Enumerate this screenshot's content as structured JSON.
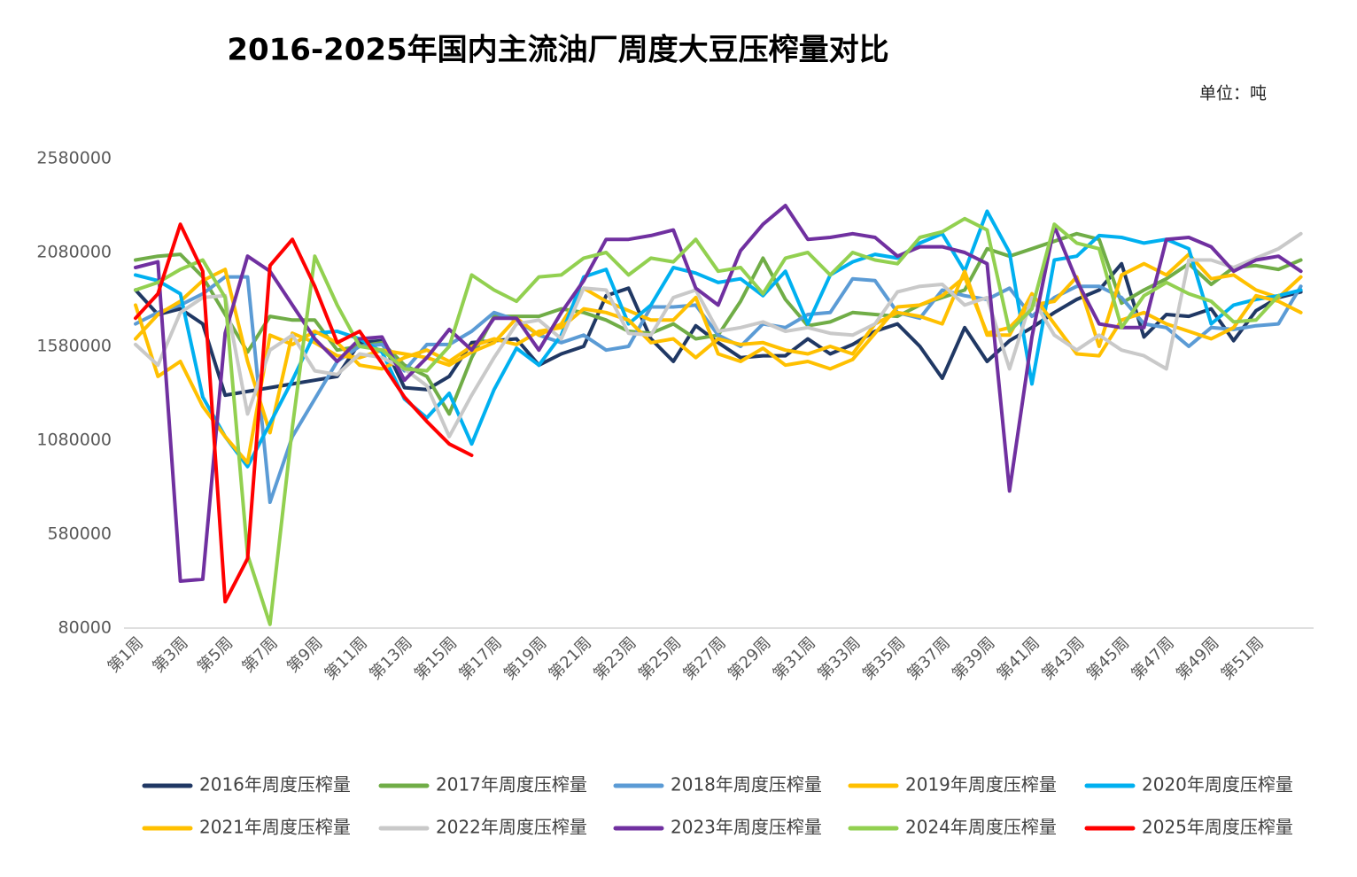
{
  "chart_data": {
    "type": "line",
    "title": "2016-2025年国内主流油厂周度大豆压榨量对比",
    "unit": "单位：吨",
    "categories": [
      "第1周",
      null,
      "第3周",
      null,
      "第5周",
      null,
      "第7周",
      null,
      "第9周",
      null,
      "第11周",
      null,
      "第13周",
      null,
      "第15周",
      null,
      "第17周",
      null,
      "第19周",
      null,
      "第21周",
      null,
      "第23周",
      null,
      "第25周",
      null,
      "第27周",
      null,
      "第29周",
      null,
      "第31周",
      null,
      "第33周",
      null,
      "第35周",
      null,
      "第37周",
      null,
      "第39周",
      null,
      "第41周",
      null,
      "第43周",
      null,
      "第45周",
      null,
      "第47周",
      null,
      "第49周",
      null,
      "第51周",
      null,
      null
    ],
    "ylim": [
      80000,
      2580000
    ],
    "yticks": [
      80000,
      580000,
      1080000,
      1580000,
      2080000,
      2580000
    ],
    "grid": false,
    "legend": "bottom",
    "series": [
      {
        "name": "2016年周度压榨量",
        "color": "#203864",
        "values": [
          1880000,
          1750000,
          1780000,
          1700000,
          1320000,
          1340000,
          1360000,
          1380000,
          1400000,
          1420000,
          1600000,
          1610000,
          1360000,
          1350000,
          1420000,
          1600000,
          1610000,
          1620000,
          1480000,
          1540000,
          1580000,
          1850000,
          1890000,
          1620000,
          1500000,
          1690000,
          1600000,
          1520000,
          1530000,
          1530000,
          1620000,
          1540000,
          1590000,
          1660000,
          1700000,
          1580000,
          1410000,
          1680000,
          1500000,
          1610000,
          1680000,
          1760000,
          1830000,
          1880000,
          2020000,
          1630000,
          1750000,
          1740000,
          1780000,
          1610000,
          1770000,
          1840000,
          1870000
        ]
      },
      {
        "name": "2017年周度压榨量",
        "color": "#70AD47",
        "values": [
          2040000,
          2060000,
          2070000,
          1950000,
          1750000,
          1550000,
          1740000,
          1720000,
          1720000,
          1560000,
          1580000,
          1600000,
          1480000,
          1420000,
          1220000,
          1520000,
          1740000,
          1740000,
          1740000,
          1780000,
          1760000,
          1720000,
          1660000,
          1650000,
          1700000,
          1620000,
          1640000,
          1820000,
          2050000,
          1830000,
          1690000,
          1710000,
          1760000,
          1750000,
          1740000,
          1800000,
          1840000,
          1880000,
          2100000,
          2060000,
          2100000,
          2140000,
          2180000,
          2150000,
          1810000,
          1880000,
          1940000,
          2020000,
          1910000,
          2000000,
          2010000,
          1990000,
          2040000
        ]
      },
      {
        "name": "2018年周度压榨量",
        "color": "#5B9BD5",
        "values": [
          1700000,
          1760000,
          1800000,
          1860000,
          1950000,
          1950000,
          750000,
          1100000,
          1300000,
          1500000,
          1580000,
          1590000,
          1450000,
          1590000,
          1590000,
          1660000,
          1760000,
          1720000,
          1640000,
          1600000,
          1640000,
          1560000,
          1580000,
          1790000,
          1790000,
          1800000,
          1640000,
          1580000,
          1700000,
          1680000,
          1750000,
          1760000,
          1940000,
          1930000,
          1760000,
          1730000,
          1880000,
          1850000,
          1830000,
          1890000,
          1740000,
          1840000,
          1900000,
          1900000,
          1840000,
          1700000,
          1680000,
          1580000,
          1680000,
          1670000,
          1690000,
          1700000,
          1900000
        ]
      },
      {
        "name": "2019年周度压榨量",
        "color": "#FFC000",
        "values": [
          1620000,
          1750000,
          1820000,
          1930000,
          1990000,
          1500000,
          1120000,
          1650000,
          1600000,
          1530000,
          1520000,
          1560000,
          1540000,
          1520000,
          1480000,
          1550000,
          1600000,
          1730000,
          1640000,
          1700000,
          1890000,
          1820000,
          1770000,
          1720000,
          1720000,
          1840000,
          1540000,
          1500000,
          1570000,
          1480000,
          1500000,
          1460000,
          1510000,
          1650000,
          1790000,
          1800000,
          1850000,
          1950000,
          1650000,
          1680000,
          1800000,
          1820000,
          1950000,
          1580000,
          1960000,
          2020000,
          1960000,
          2070000,
          1940000,
          1960000,
          1880000,
          1840000,
          1950000
        ]
      },
      {
        "name": "2020年周度压榨量",
        "color": "#00B0F0",
        "values": [
          1960000,
          1930000,
          1860000,
          1310000,
          1100000,
          940000,
          1170000,
          1400000,
          1650000,
          1660000,
          1620000,
          1550000,
          1300000,
          1200000,
          1330000,
          1060000,
          1350000,
          1570000,
          1480000,
          1640000,
          1950000,
          1990000,
          1700000,
          1800000,
          2000000,
          1970000,
          1920000,
          1940000,
          1850000,
          1980000,
          1700000,
          1960000,
          2030000,
          2070000,
          2050000,
          2130000,
          2180000,
          1980000,
          2300000,
          2080000,
          1380000,
          2040000,
          2060000,
          2170000,
          2160000,
          2130000,
          2150000,
          2100000,
          1700000,
          1800000,
          1830000,
          1850000,
          1880000
        ]
      },
      {
        "name": "2021年周度压榨量",
        "color": "#FFC000",
        "values": [
          1800000,
          1420000,
          1500000,
          1260000,
          1100000,
          960000,
          1640000,
          1590000,
          1660000,
          1600000,
          1480000,
          1460000,
          1520000,
          1560000,
          1500000,
          1580000,
          1620000,
          1590000,
          1660000,
          1680000,
          1780000,
          1760000,
          1720000,
          1600000,
          1620000,
          1520000,
          1620000,
          1590000,
          1600000,
          1560000,
          1540000,
          1580000,
          1540000,
          1700000,
          1760000,
          1740000,
          1700000,
          1980000,
          1640000,
          1640000,
          1860000,
          1700000,
          1540000,
          1530000,
          1720000,
          1760000,
          1700000,
          1660000,
          1620000,
          1680000,
          1850000,
          1820000,
          1760000
        ]
      },
      {
        "name": "2022年周度压榨量",
        "color": "#C9C9C9",
        "values": [
          1590000,
          1480000,
          1760000,
          1840000,
          1850000,
          1220000,
          1560000,
          1640000,
          1450000,
          1430000,
          1540000,
          1520000,
          1460000,
          1370000,
          1100000,
          1320000,
          1520000,
          1700000,
          1720000,
          1620000,
          1890000,
          1880000,
          1650000,
          1640000,
          1840000,
          1880000,
          1660000,
          1680000,
          1710000,
          1660000,
          1680000,
          1650000,
          1640000,
          1700000,
          1870000,
          1900000,
          1910000,
          1800000,
          1840000,
          1460000,
          1840000,
          1640000,
          1560000,
          1640000,
          1560000,
          1530000,
          1460000,
          2040000,
          2040000,
          2000000,
          2050000,
          2100000,
          2180000
        ]
      },
      {
        "name": "2023年周度压榨量",
        "color": "#7030A0",
        "values": [
          2000000,
          2030000,
          330000,
          340000,
          1650000,
          2060000,
          1980000,
          1800000,
          1620000,
          1500000,
          1620000,
          1630000,
          1400000,
          1520000,
          1670000,
          1560000,
          1730000,
          1730000,
          1560000,
          1760000,
          1930000,
          2150000,
          2150000,
          2170000,
          2200000,
          1890000,
          1800000,
          2090000,
          2230000,
          2330000,
          2150000,
          2160000,
          2180000,
          2160000,
          2060000,
          2110000,
          2110000,
          2080000,
          2020000,
          810000,
          1630000,
          2220000,
          1930000,
          1700000,
          1680000,
          1680000,
          2150000,
          2160000,
          2110000,
          1980000,
          2040000,
          2060000,
          1980000
        ]
      },
      {
        "name": "2024年周度压榨量",
        "color": "#92D050",
        "values": [
          1880000,
          1920000,
          1990000,
          2040000,
          1840000,
          470000,
          100000,
          1150000,
          2060000,
          1800000,
          1580000,
          1560000,
          1460000,
          1450000,
          1580000,
          1960000,
          1880000,
          1820000,
          1950000,
          1960000,
          2050000,
          2080000,
          1960000,
          2050000,
          2030000,
          2150000,
          1980000,
          2000000,
          1860000,
          2050000,
          2080000,
          1960000,
          2080000,
          2040000,
          2020000,
          2160000,
          2190000,
          2260000,
          2200000,
          1660000,
          1780000,
          2230000,
          2130000,
          2100000,
          1680000,
          1850000,
          1920000,
          1860000,
          1820000,
          1710000,
          1720000,
          1850000,
          null
        ]
      },
      {
        "name": "2025年周度压榨量",
        "color": "#FF0000",
        "values": [
          1730000,
          1860000,
          2230000,
          1980000,
          220000,
          450000,
          2010000,
          2150000,
          1900000,
          1600000,
          1660000,
          1490000,
          1310000,
          1180000,
          1060000,
          1000000,
          null,
          null,
          null,
          null,
          null,
          null,
          null,
          null,
          null,
          null,
          null,
          null,
          null,
          null,
          null,
          null,
          null,
          null,
          null,
          null,
          null,
          null,
          null,
          null,
          null,
          null,
          null,
          null,
          null,
          null,
          null,
          null,
          null,
          null,
          null,
          null,
          null
        ]
      }
    ]
  }
}
